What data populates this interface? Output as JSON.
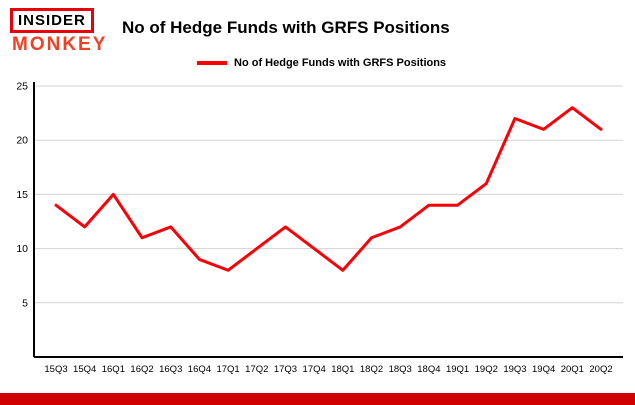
{
  "logo": {
    "line1": "INSIDER",
    "line2": "MONKEY"
  },
  "header": {
    "title": "No of Hedge Funds with GRFS Positions"
  },
  "legend": {
    "label": "No of Hedge Funds with GRFS Positions",
    "color": "#fb0007"
  },
  "chart_data": {
    "type": "line",
    "title": "No of Hedge Funds with GRFS Positions",
    "categories": [
      "15Q3",
      "15Q4",
      "16Q1",
      "16Q2",
      "16Q3",
      "16Q4",
      "17Q1",
      "17Q2",
      "17Q3",
      "17Q4",
      "18Q1",
      "18Q2",
      "18Q3",
      "18Q4",
      "19Q1",
      "19Q2",
      "19Q3",
      "19Q4",
      "20Q1",
      "20Q2"
    ],
    "values": [
      14,
      12,
      15,
      11,
      12,
      9,
      8,
      10,
      12,
      10,
      8,
      11,
      12,
      14,
      14,
      16,
      22,
      21,
      23,
      21
    ],
    "xlabel": "",
    "ylabel": "",
    "ylim": [
      0,
      25
    ],
    "yticks": [
      5,
      10,
      15,
      20,
      25
    ],
    "grid": true,
    "legend_position": "top-left",
    "line_color": "#fb0007",
    "grid_color": "#d3d3d3",
    "axis_color": "#000000"
  },
  "colors": {
    "footer_bar": "#d10000",
    "logo_border": "#e8000d",
    "logo_monkey": "#ef4123"
  }
}
